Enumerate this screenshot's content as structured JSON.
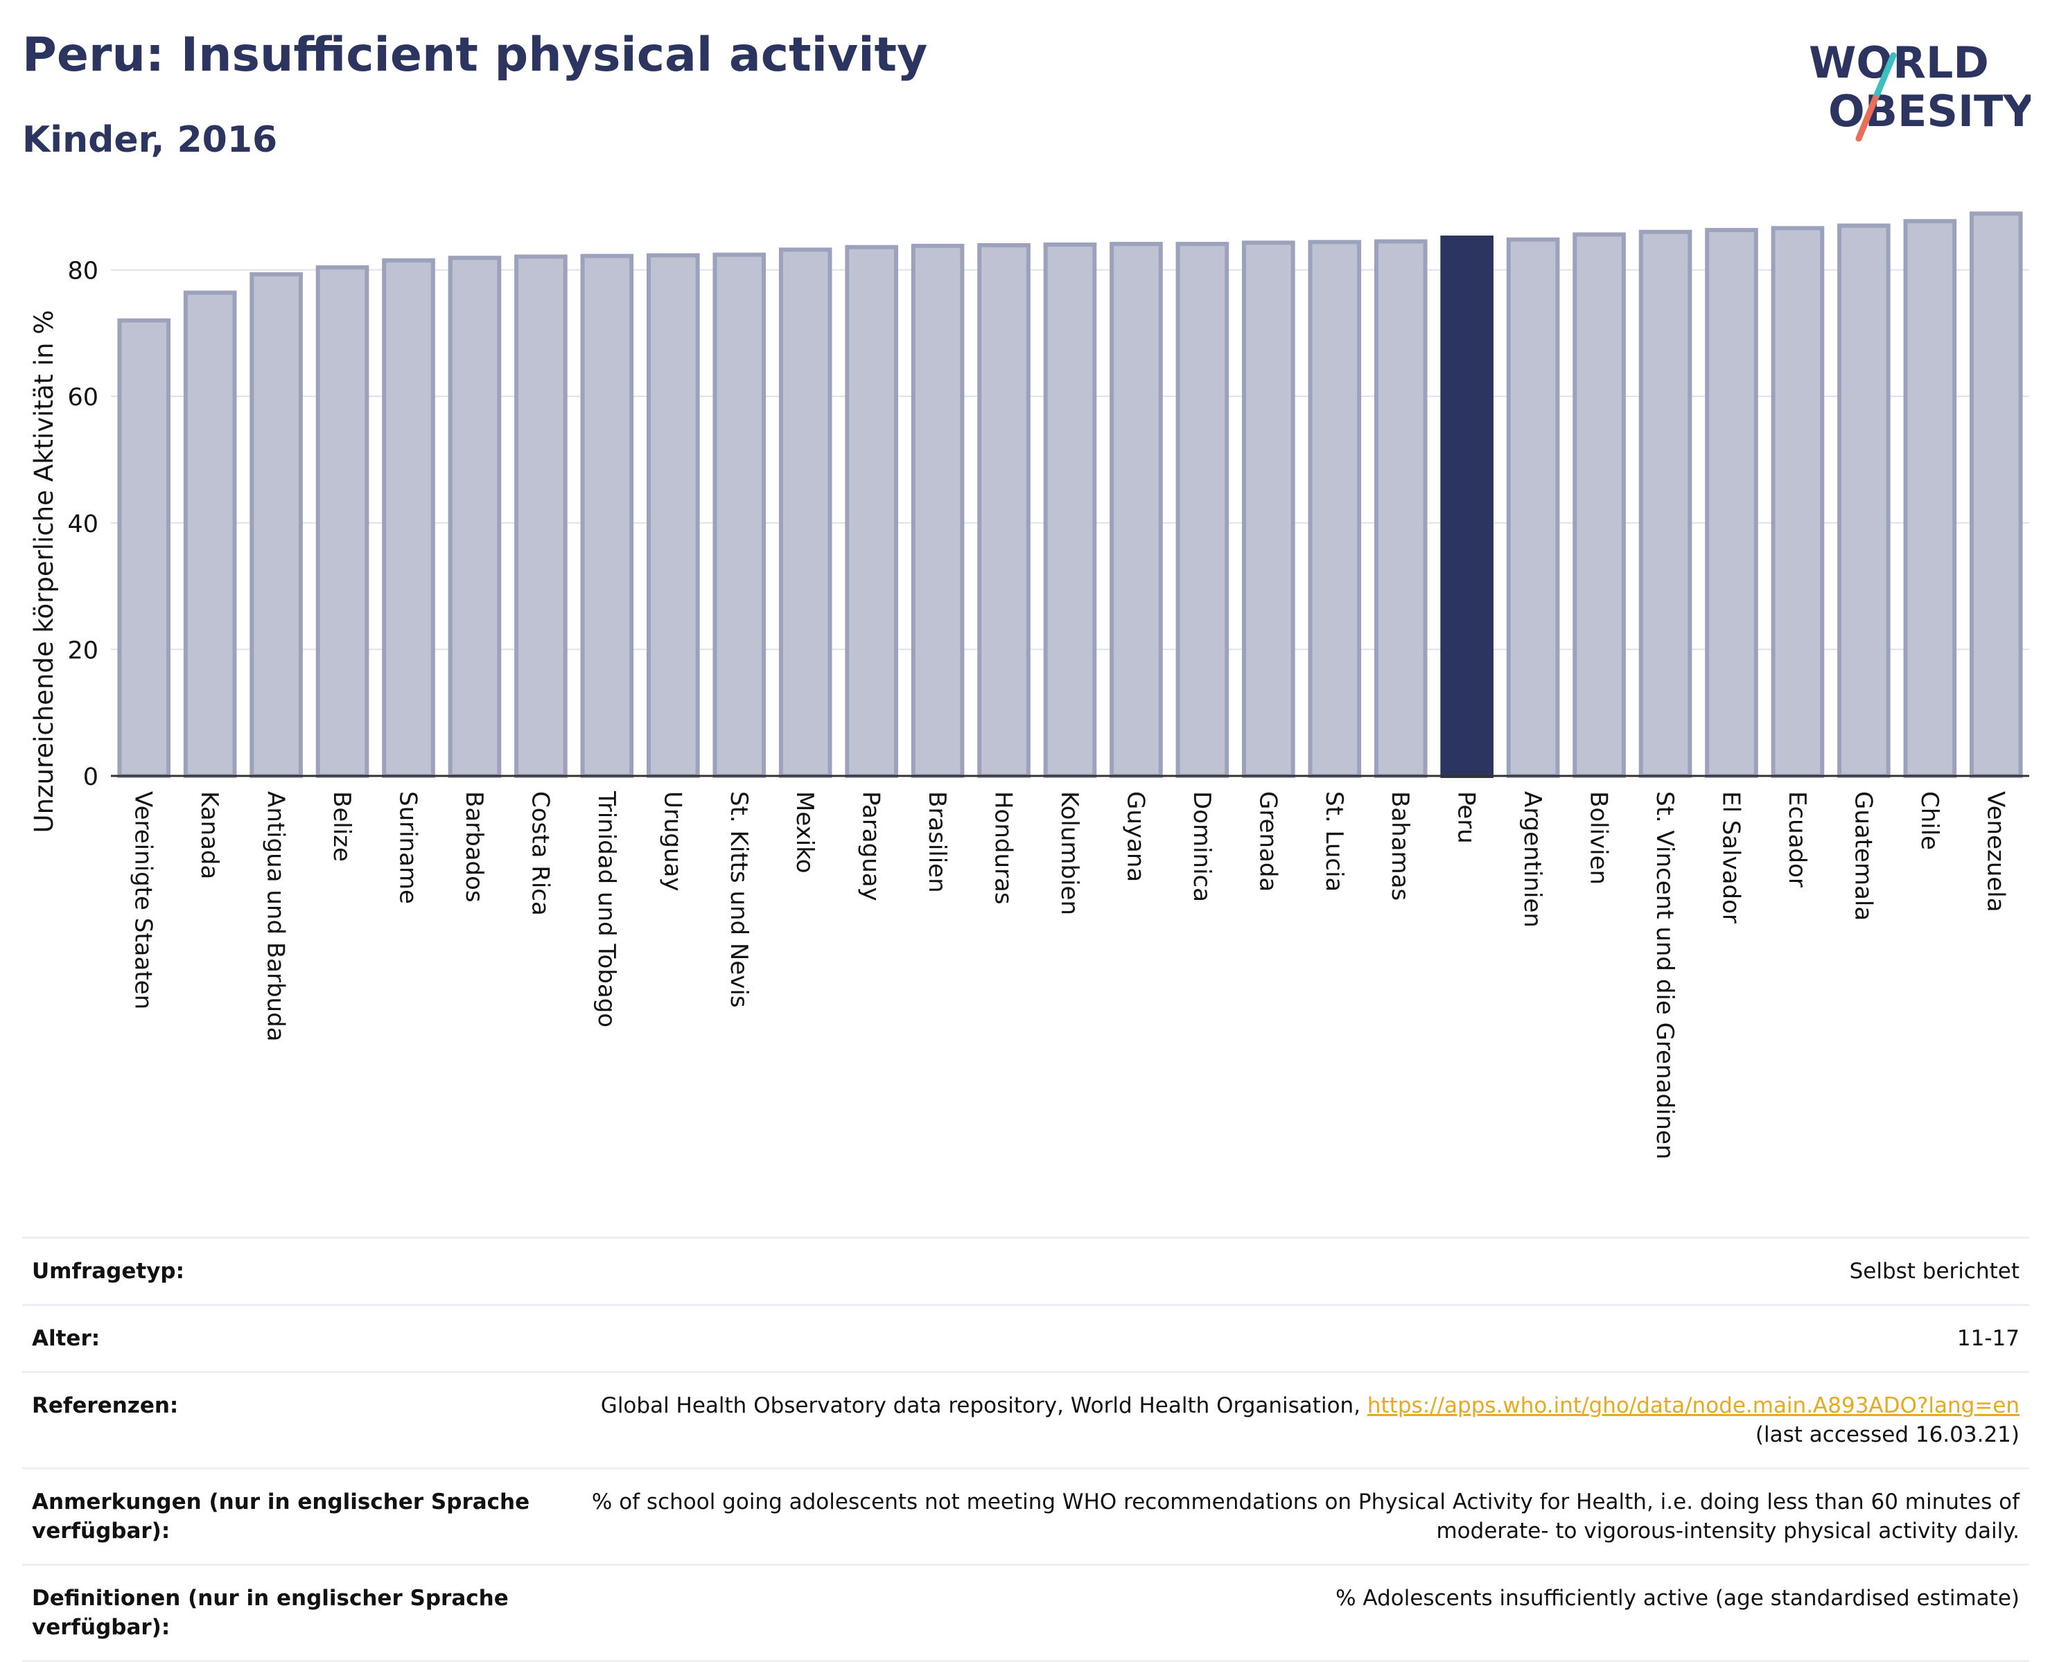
{
  "header": {
    "title": "Peru: Insufficient physical activity",
    "subtitle": "Kinder, 2016"
  },
  "logo": {
    "line1": "WORLD",
    "line2": "OBESITY",
    "colors": {
      "text": "#2b3560",
      "slash_top": "#3dbfbf",
      "slash_bottom": "#e8705a"
    }
  },
  "colors": {
    "bar_fill": "#bfc2d2",
    "bar_stroke": "#9ca2bc",
    "highlight": "#2b3560",
    "grid": "#dfe1ea",
    "axis": "#333333"
  },
  "chart_data": {
    "type": "bar",
    "ylabel": "Unzureichende körperliche Aktivität in %",
    "ylim": [
      0,
      92
    ],
    "yticks": [
      0,
      20,
      40,
      60,
      80
    ],
    "grid": true,
    "highlight_category": "Peru",
    "categories": [
      "Vereinigte Staaten",
      "Kanada",
      "Antigua und Barbuda",
      "Belize",
      "Suriname",
      "Barbados",
      "Costa Rica",
      "Trinidad und Tobago",
      "Uruguay",
      "St. Kitts und Nevis",
      "Mexiko",
      "Paraguay",
      "Brasilien",
      "Honduras",
      "Kolumbien",
      "Guyana",
      "Dominica",
      "Grenada",
      "St. Lucia",
      "Bahamas",
      "Peru",
      "Argentinien",
      "Bolivien",
      "St. Vincent und die Grenadinen",
      "El Salvador",
      "Ecuador",
      "Guatemala",
      "Chile",
      "Venezuela"
    ],
    "values": [
      72.0,
      76.4,
      79.3,
      80.4,
      81.5,
      81.9,
      82.1,
      82.2,
      82.3,
      82.4,
      83.2,
      83.6,
      83.8,
      83.9,
      84.0,
      84.1,
      84.1,
      84.3,
      84.4,
      84.5,
      85.1,
      84.8,
      85.6,
      86.0,
      86.3,
      86.6,
      87.0,
      87.7,
      88.9
    ]
  },
  "info": {
    "survey_label": "Umfragetyp:",
    "survey_value": "Selbst berichtet",
    "age_label": "Alter:",
    "age_value": "11-17",
    "ref_label": "Referenzen:",
    "ref_text": "Global Health Observatory data repository, World Health Organisation, ",
    "ref_link": "https://apps.who.int/gho/data/node.main.A893ADO?lang=en",
    "ref_accessed": "(last accessed 16.03.21)",
    "notes_label": "Anmerkungen (nur in englischer Sprache verfügbar):",
    "notes_value": "% of school going adolescents not meeting WHO recommendations on Physical Activity for Health, i.e. doing less than 60 minutes of moderate- to vigorous-intensity physical activity daily.",
    "defs_label": "Definitionen (nur in englischer Sprache verfügbar):",
    "defs_value": "% Adolescents insufficiently active (age standardised estimate)"
  }
}
